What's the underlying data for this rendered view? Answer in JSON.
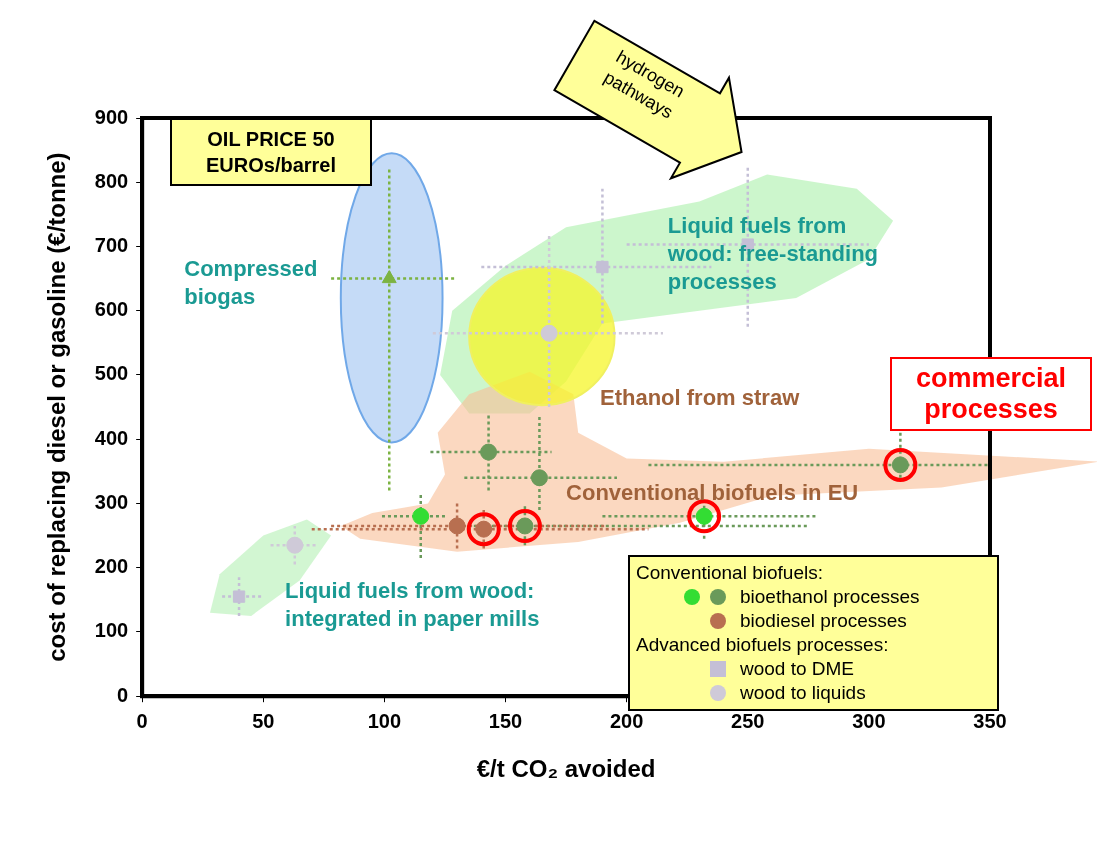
{
  "chart_data": {
    "type": "scatter",
    "xlabel": "€/t CO₂ avoided",
    "ylabel": "cost of replacing diesel or gasoline (€/tonne)",
    "xlim": [
      0,
      350
    ],
    "xticks": [
      0,
      50,
      100,
      150,
      200,
      250,
      300,
      350
    ],
    "ylim": [
      0,
      900
    ],
    "yticks": [
      0,
      100,
      200,
      300,
      400,
      500,
      600,
      700,
      800,
      900
    ],
    "legend": "bottom right",
    "legend_title": "Conventional biofuels:",
    "marker": "circle",
    "series": [
      {
        "name": "Compressed biogas",
        "marker": "triangle",
        "color": "#7cb342",
        "x": [
          102
        ],
        "values": [
          650
        ],
        "errors": [
          [
            320,
            820
          ]
        ],
        "xerrors": [
          [
            78,
            130
          ]
        ]
      },
      {
        "name": "bioethanol processes",
        "color": "#6a9a5a",
        "colors": [
          "#33dd33",
          "#33dd33",
          "#6a9a5a",
          "#6a9a5a",
          "#6a9a5a",
          "#6a9a5a"
        ],
        "x": [
          115,
          232,
          143,
          164,
          158,
          313
        ],
        "values": [
          280,
          280,
          380,
          340,
          265,
          360
        ],
        "errors": [
          [
            215,
            315
          ],
          [
            245,
            310
          ],
          [
            320,
            440
          ],
          [
            290,
            435
          ],
          [
            235,
            300
          ],
          [
            340,
            410
          ]
        ],
        "xerrors": [
          [
            99,
            125
          ],
          [
            190,
            278
          ],
          [
            119,
            169
          ],
          [
            133,
            196
          ],
          [
            127,
            275
          ],
          [
            209,
            350
          ]
        ]
      },
      {
        "name": "biodiesel processes",
        "color": "#b86f50",
        "x": [
          130,
          141
        ],
        "values": [
          265,
          260
        ],
        "errors": [
          [
            230,
            300
          ],
          [
            230,
            290
          ]
        ],
        "xerrors": [
          [
            78,
            192
          ],
          [
            70,
            209
          ]
        ]
      },
      {
        "name": "wood to DME",
        "marker": "square",
        "color": "#c4bfd6",
        "x": [
          40,
          190,
          250
        ],
        "values": [
          155,
          668,
          703
        ],
        "errors": [
          [
            125,
            185
          ],
          [
            580,
            790
          ],
          [
            575,
            825
          ]
        ],
        "xerrors": [
          [
            33,
            50
          ],
          [
            140,
            235
          ],
          [
            200,
            300
          ]
        ]
      },
      {
        "name": "wood to liquids",
        "color": "#cfcad8",
        "x": [
          63,
          168
        ],
        "values": [
          235,
          565
        ],
        "errors": [
          [
            205,
            265
          ],
          [
            450,
            720
          ]
        ],
        "xerrors": [
          [
            53,
            72
          ],
          [
            120,
            215
          ]
        ]
      },
      {
        "color": "#ff0000",
        "x": [
          141,
          158,
          232,
          313
        ],
        "values": [
          260,
          265,
          280,
          360
        ]
      }
    ],
    "annotations": [
      "OIL PRICE 50 EUROs/barrel",
      "hydrogen pathways",
      "commercial processes",
      "Advanced biofuels processes:",
      "Liquid fuels from wood: free-standing processes",
      "Ethanol from straw",
      "Conventional biofuels in EU",
      "Liquid fuels from wood: integrated in paper mills"
    ]
  }
}
